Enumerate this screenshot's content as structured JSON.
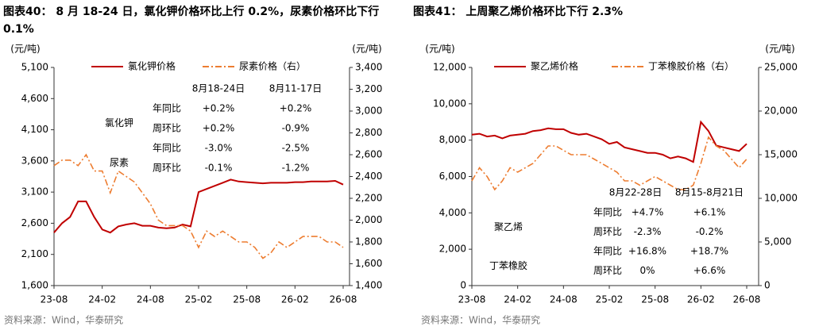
{
  "chart_data": [
    {
      "type": "line",
      "title": "图表40：  8 月 18-24 日，氯化钾价格环比上行 0.2%，尿素价格环比下行 0.1%",
      "ylabel": "(元/吨)",
      "y2label": "(元/吨)",
      "x": [
        "23-08",
        "23-09",
        "23-10",
        "23-11",
        "23-12",
        "24-01",
        "24-02",
        "24-03",
        "24-04",
        "24-05",
        "24-06",
        "24-07",
        "24-08",
        "24-09",
        "24-10",
        "24-11",
        "24-12",
        "25-01",
        "25-02",
        "25-03",
        "25-04",
        "25-05",
        "25-06",
        "25-07",
        "25-08",
        "25-09",
        "25-10",
        "25-11",
        "25-12",
        "26-01",
        "26-02",
        "26-03",
        "26-04",
        "26-05",
        "26-06",
        "26-07",
        "26-08"
      ],
      "xticks": [
        "23-08",
        "24-02",
        "24-08",
        "25-02",
        "25-08",
        "26-02",
        "26-08"
      ],
      "ylim": [
        1600,
        5100
      ],
      "yticks": [
        {
          "value": 1600,
          "label": "1,600"
        },
        {
          "value": 2100,
          "label": "2,100"
        },
        {
          "value": 2600,
          "label": "2,600"
        },
        {
          "value": 3100,
          "label": "3,100"
        },
        {
          "value": 3600,
          "label": "3,600"
        },
        {
          "value": 4100,
          "label": "4,100"
        },
        {
          "value": 4600,
          "label": "4,600"
        },
        {
          "value": 5100,
          "label": "5,100"
        }
      ],
      "y2lim": [
        1400,
        3400
      ],
      "y2ticks": [
        {
          "value": 1400,
          "label": "1,400"
        },
        {
          "value": 1600,
          "label": "1,600"
        },
        {
          "value": 1800,
          "label": "1,800"
        },
        {
          "value": 2000,
          "label": "2,000"
        },
        {
          "value": 2200,
          "label": "2,200"
        },
        {
          "value": 2400,
          "label": "2,400"
        },
        {
          "value": 2600,
          "label": "2,600"
        },
        {
          "value": 2800,
          "label": "2,800"
        },
        {
          "value": 3000,
          "label": "3,000"
        },
        {
          "value": 3200,
          "label": "3,200"
        },
        {
          "value": 3400,
          "label": "3,400"
        }
      ],
      "series": [
        {
          "name": "氯化钾价格",
          "color": "#c00000",
          "dash": "solid",
          "values": [
            2450,
            2600,
            2700,
            2950,
            2950,
            2700,
            2500,
            2450,
            2550,
            2580,
            2600,
            2560,
            2560,
            2530,
            2520,
            2530,
            2580,
            2550,
            3100,
            3150,
            3200,
            3250,
            3300,
            3270,
            3260,
            3250,
            3240,
            3250,
            3250,
            3250,
            3260,
            3260,
            3270,
            3270,
            3270,
            3280,
            3220
          ]
        },
        {
          "name": "尿素价格（右）",
          "color": "#ed7d31",
          "dash": "dash-dot",
          "axis": "y2",
          "values": [
            2500,
            2550,
            2550,
            2500,
            2600,
            2450,
            2450,
            2250,
            2450,
            2400,
            2350,
            2250,
            2150,
            2000,
            1950,
            1950,
            1950,
            1900,
            1750,
            1900,
            1850,
            1900,
            1850,
            1800,
            1800,
            1750,
            1650,
            1700,
            1800,
            1750,
            1800,
            1850,
            1850,
            1850,
            1800,
            1800,
            1750
          ]
        }
      ],
      "annotation": {
        "columns": [
          "8月18-24日",
          "8月11-17日"
        ],
        "groups": [
          {
            "name": "氯化钾",
            "rows": [
              {
                "label": "年同比",
                "values": [
                  "+0.2%",
                  "+0.2%"
                ]
              },
              {
                "label": "周环比",
                "values": [
                  "+0.2%",
                  "-0.9%"
                ]
              }
            ]
          },
          {
            "name": "尿素",
            "rows": [
              {
                "label": "年同比",
                "values": [
                  "-3.0%",
                  "-2.5%"
                ]
              },
              {
                "label": "周环比",
                "values": [
                  "-0.1%",
                  "-1.2%"
                ]
              }
            ]
          }
        ]
      },
      "source": "资料来源：Wind，华泰研究"
    },
    {
      "type": "line",
      "title": "图表41：  上周聚乙烯价格环比下行 2.3%",
      "ylabel": "(元/吨)",
      "y2label": "(元/吨)",
      "x": [
        "23-08",
        "23-09",
        "23-10",
        "23-11",
        "23-12",
        "24-01",
        "24-02",
        "24-03",
        "24-04",
        "24-05",
        "24-06",
        "24-07",
        "24-08",
        "24-09",
        "24-10",
        "24-11",
        "24-12",
        "25-01",
        "25-02",
        "25-03",
        "25-04",
        "25-05",
        "25-06",
        "25-07",
        "25-08",
        "25-09",
        "25-10",
        "25-11",
        "25-12",
        "26-01",
        "26-02",
        "26-03",
        "26-04",
        "26-05",
        "26-06",
        "26-07",
        "26-08"
      ],
      "xticks": [
        "23-08",
        "24-02",
        "24-08",
        "25-02",
        "25-08",
        "26-02",
        "26-08"
      ],
      "ylim": [
        0,
        12000
      ],
      "yticks": [
        0,
        {
          "value": 2000,
          "label": "2,000"
        },
        {
          "value": 4000,
          "label": "4,000"
        },
        {
          "value": 6000,
          "label": "6,000"
        },
        {
          "value": 8000,
          "label": "8,000"
        },
        {
          "value": 10000,
          "label": "10,000"
        },
        {
          "value": 12000,
          "label": "12,000"
        }
      ],
      "y2lim": [
        0,
        25000
      ],
      "y2ticks": [
        0,
        {
          "value": 5000,
          "label": "5,000"
        },
        {
          "value": 10000,
          "label": "10,000"
        },
        {
          "value": 15000,
          "label": "15,000"
        },
        {
          "value": 20000,
          "label": "20,000"
        },
        {
          "value": 25000,
          "label": "25,000"
        }
      ],
      "series": [
        {
          "name": "聚乙烯价格",
          "color": "#c00000",
          "dash": "solid",
          "values": [
            8300,
            8350,
            8200,
            8250,
            8100,
            8250,
            8300,
            8350,
            8500,
            8550,
            8650,
            8600,
            8600,
            8400,
            8300,
            8350,
            8200,
            8050,
            7800,
            7900,
            7600,
            7500,
            7400,
            7300,
            7300,
            7200,
            7000,
            7100,
            7000,
            6800,
            9000,
            8500,
            7700,
            7600,
            7500,
            7400,
            7800
          ]
        },
        {
          "name": "丁苯橡胶价格（右）",
          "color": "#ed7d31",
          "dash": "dash-dot",
          "axis": "y2",
          "values": [
            12000,
            13500,
            12500,
            11000,
            12000,
            13500,
            13000,
            13500,
            14000,
            15000,
            16000,
            16000,
            15500,
            15000,
            15000,
            15000,
            14500,
            14000,
            13500,
            13000,
            12000,
            12000,
            11500,
            12000,
            12500,
            12000,
            11500,
            11000,
            11000,
            11500,
            14000,
            17000,
            16000,
            15500,
            14500,
            13500,
            14500
          ]
        }
      ],
      "annotation": {
        "columns": [
          "8月22-28日",
          "8月15-8月21日"
        ],
        "groups": [
          {
            "name": "聚乙烯",
            "rows": [
              {
                "label": "年同比",
                "values": [
                  "+4.7%",
                  "+6.1%"
                ]
              },
              {
                "label": "周环比",
                "values": [
                  "-2.3%",
                  "-0.2%"
                ]
              }
            ]
          },
          {
            "name": "丁苯橡胶",
            "rows": [
              {
                "label": "年同比",
                "values": [
                  "+16.8%",
                  "+18.7%"
                ]
              },
              {
                "label": "周环比",
                "values": [
                  "0%",
                  "+6.6%"
                ]
              }
            ]
          }
        ]
      },
      "source": "资料来源：Wind，华泰研究"
    }
  ]
}
